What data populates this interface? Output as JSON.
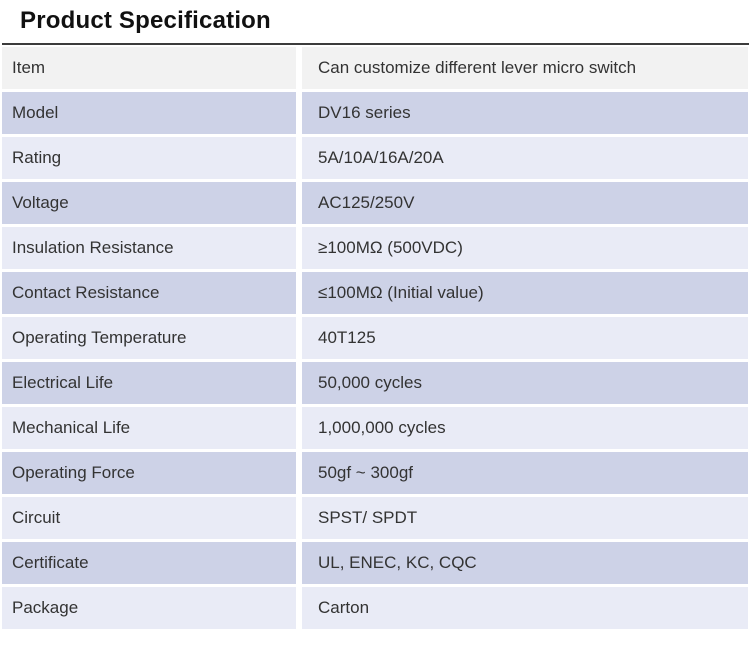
{
  "title": "Product Specification",
  "colors": {
    "header_row_bg": "#f2f2f2",
    "row_alt_dark": "#cdd2e7",
    "row_alt_light": "#e9ebf6",
    "text": "#333333",
    "top_rule": "#3c3c3c"
  },
  "table": {
    "rows": [
      {
        "label": "Item",
        "value": "Can customize different lever micro switch"
      },
      {
        "label": "Model",
        "value": "DV16 series"
      },
      {
        "label": "Rating",
        "value": "5A/10A/16A/20A"
      },
      {
        "label": "Voltage",
        "value": "AC125/250V"
      },
      {
        "label": "Insulation Resistance",
        "value": "≥100MΩ (500VDC)"
      },
      {
        "label": "Contact Resistance",
        "value": "≤100MΩ (Initial value)"
      },
      {
        "label": "Operating Temperature",
        "value": "40T125"
      },
      {
        "label": "Electrical Life",
        "value": "50,000 cycles"
      },
      {
        "label": "Mechanical Life",
        "value": "1,000,000 cycles"
      },
      {
        "label": "Operating Force",
        "value": "50gf  ~  300gf"
      },
      {
        "label": "Circuit",
        "value": "SPST/ SPDT"
      },
      {
        "label": "Certificate",
        "value": "UL, ENEC, KC, CQC"
      },
      {
        "label": "Package",
        "value": "Carton"
      }
    ]
  }
}
